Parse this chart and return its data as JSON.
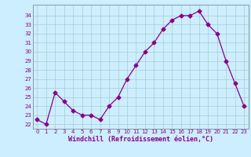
{
  "x": [
    0,
    1,
    2,
    3,
    4,
    5,
    6,
    7,
    8,
    9,
    10,
    11,
    12,
    13,
    14,
    15,
    16,
    17,
    18,
    19,
    20,
    21,
    22,
    23
  ],
  "y": [
    22.5,
    22.0,
    25.5,
    24.5,
    23.5,
    23.0,
    23.0,
    22.5,
    24.0,
    25.0,
    27.0,
    28.5,
    30.0,
    31.0,
    32.5,
    33.5,
    34.0,
    34.0,
    34.5,
    33.0,
    32.0,
    29.0,
    26.5,
    24.0
  ],
  "line_color": "#880088",
  "marker": "D",
  "marker_size": 2.5,
  "bg_color": "#cceeff",
  "grid_color": "#aacccc",
  "ylim": [
    21.5,
    35.2
  ],
  "xlim": [
    -0.5,
    23.5
  ],
  "yticks": [
    22,
    23,
    24,
    25,
    26,
    27,
    28,
    29,
    30,
    31,
    32,
    33,
    34
  ],
  "xticks": [
    0,
    1,
    2,
    3,
    4,
    5,
    6,
    7,
    8,
    9,
    10,
    11,
    12,
    13,
    14,
    15,
    16,
    17,
    18,
    19,
    20,
    21,
    22,
    23
  ],
  "tick_color": "#880088",
  "xlabel": "Windchill (Refroidissement éolien,°C)",
  "xlabel_color": "#880088"
}
